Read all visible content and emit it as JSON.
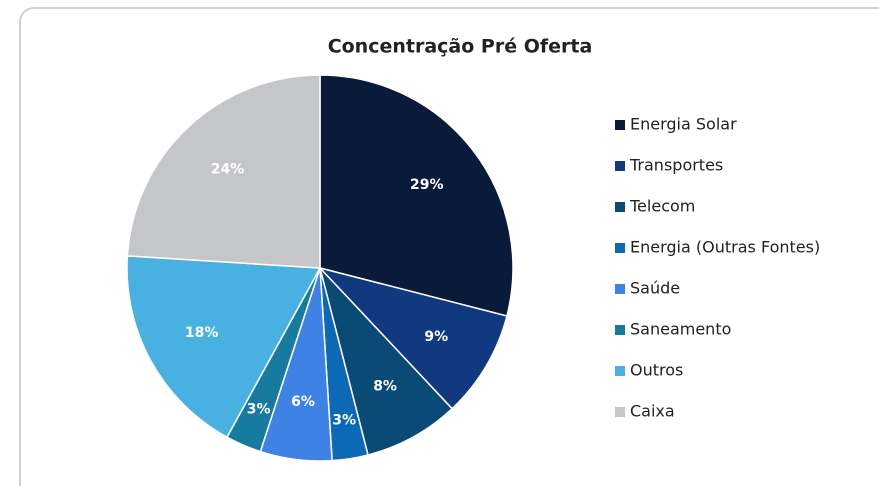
{
  "chart_data": {
    "type": "pie",
    "title": "Concentração Pré Oferta",
    "categories": [
      "Energia Solar",
      "Transportes",
      "Telecom",
      "Energia (Outras Fontes)",
      "Saúde",
      "Saneamento",
      "Outros",
      "Caixa"
    ],
    "values": [
      29,
      9,
      8,
      3,
      6,
      3,
      18,
      24
    ],
    "value_labels": [
      "29%",
      "9%",
      "8%",
      "3%",
      "6%",
      "3%",
      "18%",
      "24%"
    ],
    "colors": [
      "#0a1a3b",
      "#10397f",
      "#0b4977",
      "#0c69b6",
      "#3f82e6",
      "#167b9f",
      "#49b1e1",
      "#c4c6ca"
    ],
    "legend": "right"
  }
}
